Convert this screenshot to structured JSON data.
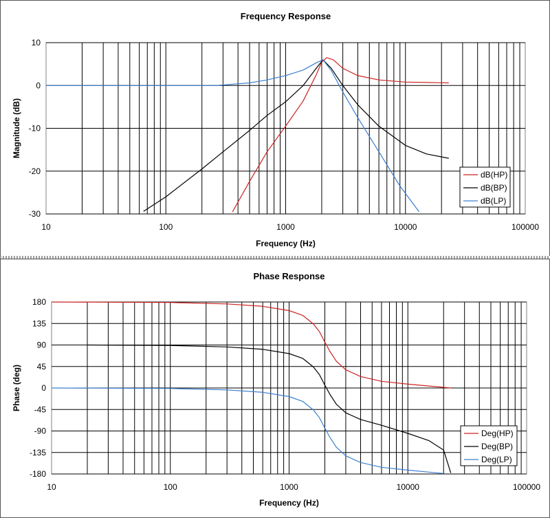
{
  "chart_data": [
    {
      "type": "line",
      "title": "Frequency Response",
      "xlabel": "Frequency (Hz)",
      "ylabel": "Magnitude (dB)",
      "xscale": "log",
      "xlim": [
        10,
        100000
      ],
      "ylim": [
        -30,
        10
      ],
      "xticks": [
        10,
        100,
        1000,
        10000,
        100000
      ],
      "xtick_labels": [
        "10",
        "100",
        "1000",
        "10000",
        "100000"
      ],
      "yticks": [
        10,
        0,
        -10,
        -20,
        -30
      ],
      "ytick_labels": [
        "10",
        "0",
        "-10",
        "-20",
        "-30"
      ],
      "grid": true,
      "legend_position": "right",
      "series": [
        {
          "name": "dB(HP)",
          "color": "#cc2222",
          "x": [
            360,
            500,
            700,
            1000,
            1400,
            1800,
            2000,
            2200,
            2500,
            3000,
            4000,
            6000,
            10000,
            15000,
            23000
          ],
          "y": [
            -29.5,
            -22.4,
            -15.5,
            -9.5,
            -3.6,
            2.5,
            5.5,
            6.5,
            6.0,
            4.0,
            2.3,
            1.3,
            0.8,
            0.7,
            0.6
          ]
        },
        {
          "name": "dB(BP)",
          "color": "#000000",
          "x": [
            65,
            100,
            200,
            300,
            500,
            700,
            1000,
            1400,
            1800,
            2050,
            2400,
            3000,
            4000,
            6000,
            10000,
            15000,
            23000
          ],
          "y": [
            -29.4,
            -26.0,
            -19.5,
            -15.5,
            -10.5,
            -7.0,
            -3.8,
            0,
            4.0,
            6.0,
            4.0,
            0,
            -4.5,
            -9.5,
            -14.0,
            -16.0,
            -17.0
          ]
        },
        {
          "name": "dB(LP)",
          "color": "#3a7fcf",
          "x": [
            10,
            260,
            500,
            700,
            1000,
            1400,
            1800,
            2050,
            2400,
            3000,
            4000,
            6000,
            9000,
            13000
          ],
          "y": [
            0,
            0,
            0.6,
            1.3,
            2.3,
            3.6,
            5.3,
            6.0,
            3.5,
            -1.5,
            -7.5,
            -15.5,
            -23.5,
            -29.5
          ]
        }
      ]
    },
    {
      "type": "line",
      "title": "Phase Response",
      "xlabel": "Frequency (Hz)",
      "ylabel": "Phase (deg)",
      "xscale": "log",
      "xlim": [
        10,
        100000
      ],
      "ylim": [
        -180,
        180
      ],
      "xticks": [
        10,
        100,
        1000,
        10000,
        100000
      ],
      "xtick_labels": [
        "10",
        "100",
        "1000",
        "10000",
        "100000"
      ],
      "yticks": [
        180,
        135,
        90,
        45,
        0,
        -45,
        -90,
        -135,
        -180
      ],
      "ytick_labels": [
        "180",
        "135",
        "90",
        "45",
        "0",
        "-45",
        "-90",
        "-135",
        "-180"
      ],
      "grid": true,
      "legend_position": "right",
      "series": [
        {
          "name": "Deg(HP)",
          "color": "#cc2222",
          "x": [
            10,
            100,
            300,
            600,
            1000,
            1300,
            1600,
            1800,
            2000,
            2200,
            2500,
            3000,
            4000,
            6000,
            10000,
            23000
          ],
          "y": [
            180,
            179,
            176,
            171,
            162,
            152,
            134,
            118,
            96,
            77,
            56,
            38,
            24,
            14,
            8,
            0
          ]
        },
        {
          "name": "Deg(BP)",
          "color": "#000000",
          "x": [
            20,
            100,
            300,
            600,
            1000,
            1300,
            1600,
            1800,
            2000,
            2200,
            2500,
            3000,
            4000,
            6000,
            10000,
            15000,
            20000,
            23000
          ],
          "y": [
            90,
            89,
            86,
            81,
            72,
            62,
            44,
            28,
            6,
            -13,
            -34,
            -52,
            -66,
            -78,
            -95,
            -110,
            -130,
            -178
          ]
        },
        {
          "name": "Deg(LP)",
          "color": "#3a7fcf",
          "x": [
            10,
            100,
            300,
            600,
            1000,
            1300,
            1600,
            1800,
            2000,
            2200,
            2500,
            3000,
            4000,
            6000,
            10000,
            20000
          ],
          "y": [
            0,
            -1,
            -4,
            -9,
            -18,
            -28,
            -46,
            -62,
            -84,
            -103,
            -124,
            -142,
            -156,
            -166,
            -172,
            -179
          ]
        }
      ]
    }
  ]
}
